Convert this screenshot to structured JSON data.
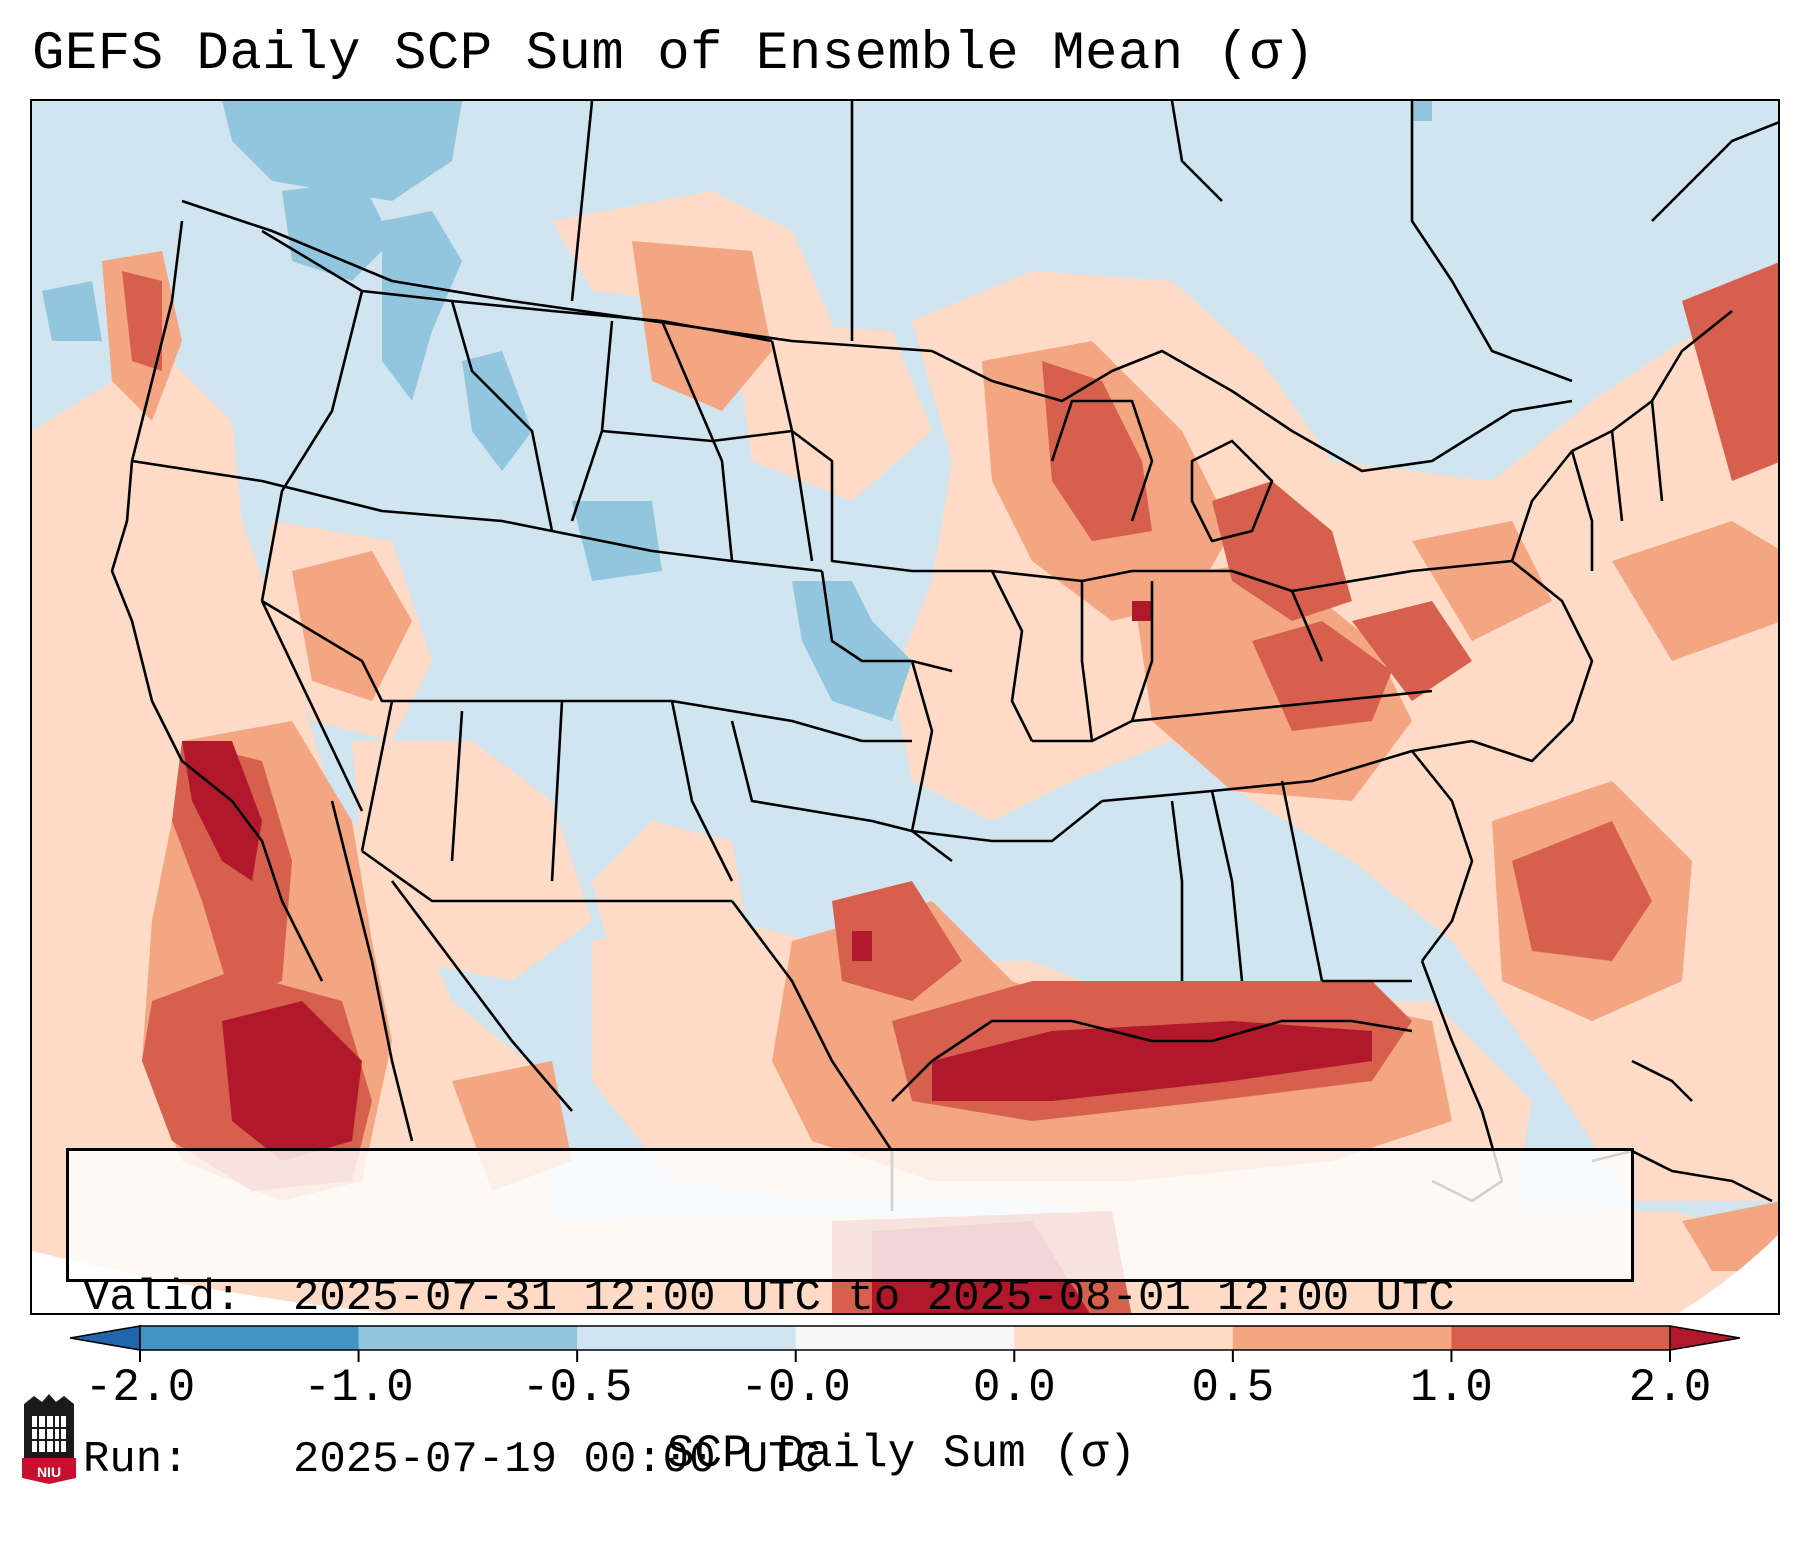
{
  "title": "GEFS Daily SCP Sum of Ensemble Mean (σ)",
  "info": {
    "valid_label": "Valid:",
    "valid_value": "2025-07-31 12:00 UTC to 2025-08-01 12:00 UTC",
    "run_label": "Run:",
    "run_value": "2025-07-19 00:00 UTC"
  },
  "colorbar": {
    "label": "SCP Daily Sum (σ)",
    "ticks": [
      "-2.0",
      "-1.0",
      "-0.5",
      "-0.0",
      "0.0",
      "0.5",
      "1.0",
      "2.0"
    ],
    "bins": [
      {
        "from": "<-2.0",
        "color": "#2166ac"
      },
      {
        "from": "-2.0",
        "color": "#4393c3"
      },
      {
        "from": "-1.0",
        "color": "#92c5de"
      },
      {
        "from": "-0.5",
        "color": "#d1e5f0"
      },
      {
        "from": "-0.0",
        "color": "#f7f7f7"
      },
      {
        "from": "0.0",
        "color": "#fddbc7"
      },
      {
        "from": "0.5",
        "color": "#f4a582"
      },
      {
        "from": "1.0",
        "color": "#d6604d"
      },
      {
        "from": ">2.0",
        "color": "#b2182b"
      }
    ]
  },
  "logo": {
    "text": "NIU",
    "colors": {
      "shield": "#c8102e",
      "tower": "#1a1a1a"
    }
  }
}
